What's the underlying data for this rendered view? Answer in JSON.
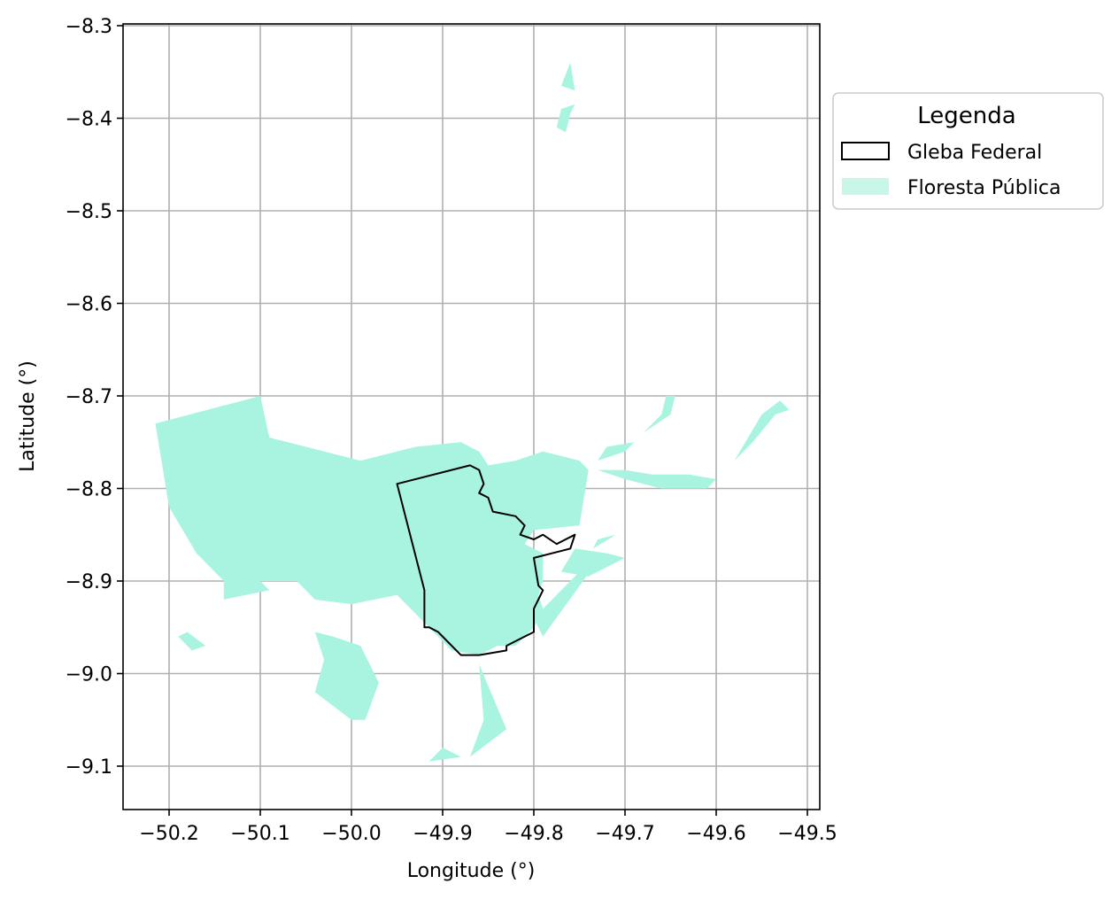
{
  "chart_data": {
    "type": "map",
    "xlabel": "Longitude (°)",
    "ylabel": "Latitude (°)",
    "xlim": [
      -50.25,
      -49.49
    ],
    "ylim": [
      -9.15,
      -8.3
    ],
    "grid": true,
    "x_ticks": [
      "−50.2",
      "−50.1",
      "−50.0",
      "−49.9",
      "−49.8",
      "−49.7",
      "−49.6",
      "−49.5"
    ],
    "y_ticks": [
      "−8.3",
      "−8.4",
      "−8.5",
      "−8.6",
      "−8.7",
      "−8.8",
      "−8.9",
      "−9.0",
      "−9.1"
    ],
    "legend": {
      "title": "Legenda",
      "placement": "outside-right",
      "entries": [
        {
          "label": "Gleba Federal",
          "style": "outline",
          "color": "#000000"
        },
        {
          "label": "Floresta Pública",
          "style": "fill",
          "color": "#a8f4e0"
        }
      ]
    },
    "layers": {
      "gleba_federal": [
        [
          [
            -49.95,
            -8.795
          ],
          [
            -49.87,
            -8.775
          ],
          [
            -49.86,
            -8.78
          ],
          [
            -49.855,
            -8.795
          ],
          [
            -49.86,
            -8.805
          ],
          [
            -49.85,
            -8.81
          ],
          [
            -49.845,
            -8.825
          ],
          [
            -49.82,
            -8.83
          ],
          [
            -49.81,
            -8.84
          ],
          [
            -49.815,
            -8.85
          ],
          [
            -49.8,
            -8.855
          ],
          [
            -49.79,
            -8.85
          ],
          [
            -49.775,
            -8.86
          ],
          [
            -49.755,
            -8.85
          ],
          [
            -49.76,
            -8.865
          ],
          [
            -49.8,
            -8.875
          ],
          [
            -49.795,
            -8.905
          ],
          [
            -49.79,
            -8.91
          ],
          [
            -49.8,
            -8.93
          ],
          [
            -49.8,
            -8.955
          ],
          [
            -49.82,
            -8.965
          ],
          [
            -49.83,
            -8.97
          ],
          [
            -49.83,
            -8.975
          ],
          [
            -49.86,
            -8.98
          ],
          [
            -49.88,
            -8.98
          ],
          [
            -49.905,
            -8.955
          ],
          [
            -49.915,
            -8.95
          ],
          [
            -49.92,
            -8.95
          ],
          [
            -49.92,
            -8.91
          ],
          [
            -49.95,
            -8.795
          ]
        ]
      ],
      "floresta_publica": [
        [
          [
            -50.215,
            -8.73
          ],
          [
            -50.1,
            -8.7
          ],
          [
            -50.09,
            -8.745
          ],
          [
            -49.99,
            -8.77
          ],
          [
            -49.93,
            -8.755
          ],
          [
            -49.88,
            -8.75
          ],
          [
            -49.86,
            -8.76
          ],
          [
            -49.85,
            -8.775
          ],
          [
            -49.82,
            -8.77
          ],
          [
            -49.79,
            -8.76
          ],
          [
            -49.75,
            -8.77
          ],
          [
            -49.74,
            -8.78
          ],
          [
            -49.75,
            -8.84
          ],
          [
            -49.8,
            -8.845
          ],
          [
            -49.81,
            -8.86
          ],
          [
            -49.79,
            -8.87
          ],
          [
            -49.79,
            -8.9
          ],
          [
            -49.795,
            -8.915
          ],
          [
            -49.79,
            -8.93
          ],
          [
            -49.8,
            -8.95
          ],
          [
            -49.82,
            -8.97
          ],
          [
            -49.84,
            -8.97
          ],
          [
            -49.86,
            -8.98
          ],
          [
            -49.89,
            -8.975
          ],
          [
            -49.91,
            -8.955
          ],
          [
            -49.925,
            -8.94
          ],
          [
            -49.95,
            -8.915
          ],
          [
            -50.0,
            -8.925
          ],
          [
            -50.04,
            -8.92
          ],
          [
            -50.06,
            -8.9
          ],
          [
            -50.09,
            -8.9
          ],
          [
            -50.14,
            -8.9
          ],
          [
            -50.17,
            -8.87
          ],
          [
            -50.2,
            -8.82
          ],
          [
            -50.215,
            -8.73
          ]
        ],
        [
          [
            -49.755,
            -8.865
          ],
          [
            -49.72,
            -8.87
          ],
          [
            -49.7,
            -8.875
          ],
          [
            -49.74,
            -8.895
          ],
          [
            -49.77,
            -8.89
          ],
          [
            -49.755,
            -8.865
          ]
        ],
        [
          [
            -49.8,
            -8.94
          ],
          [
            -49.74,
            -8.88
          ],
          [
            -49.735,
            -8.885
          ],
          [
            -49.79,
            -8.96
          ],
          [
            -49.8,
            -8.94
          ]
        ],
        [
          [
            -49.73,
            -8.77
          ],
          [
            -49.7,
            -8.76
          ],
          [
            -49.68,
            -8.74
          ],
          [
            -49.65,
            -8.72
          ],
          [
            -49.645,
            -8.7
          ],
          [
            -49.655,
            -8.7
          ],
          [
            -49.66,
            -8.72
          ],
          [
            -49.69,
            -8.75
          ],
          [
            -49.72,
            -8.755
          ],
          [
            -49.73,
            -8.77
          ]
        ],
        [
          [
            -49.73,
            -8.78
          ],
          [
            -49.7,
            -8.79
          ],
          [
            -49.66,
            -8.8
          ],
          [
            -49.61,
            -8.8
          ],
          [
            -49.6,
            -8.79
          ],
          [
            -49.63,
            -8.785
          ],
          [
            -49.67,
            -8.785
          ],
          [
            -49.7,
            -8.78
          ],
          [
            -49.73,
            -8.78
          ]
        ],
        [
          [
            -49.56,
            -8.75
          ],
          [
            -49.535,
            -8.72
          ],
          [
            -49.52,
            -8.715
          ],
          [
            -49.53,
            -8.705
          ],
          [
            -49.55,
            -8.72
          ],
          [
            -49.58,
            -8.77
          ],
          [
            -49.56,
            -8.75
          ]
        ],
        [
          [
            -49.735,
            -8.865
          ],
          [
            -49.71,
            -8.85
          ],
          [
            -49.69,
            -8.845
          ],
          [
            -49.73,
            -8.855
          ],
          [
            -49.735,
            -8.865
          ]
        ],
        [
          [
            -49.76,
            -8.34
          ],
          [
            -49.755,
            -8.37
          ],
          [
            -49.77,
            -8.365
          ],
          [
            -49.76,
            -8.34
          ]
        ],
        [
          [
            -49.755,
            -8.385
          ],
          [
            -49.77,
            -8.39
          ],
          [
            -49.775,
            -8.41
          ],
          [
            -49.765,
            -8.415
          ],
          [
            -49.76,
            -8.395
          ],
          [
            -49.755,
            -8.385
          ]
        ],
        [
          [
            -50.19,
            -8.96
          ],
          [
            -50.18,
            -8.955
          ],
          [
            -50.16,
            -8.97
          ],
          [
            -50.175,
            -8.975
          ],
          [
            -50.19,
            -8.96
          ]
        ],
        [
          [
            -50.14,
            -8.9
          ],
          [
            -50.12,
            -8.895
          ],
          [
            -50.1,
            -8.9
          ],
          [
            -50.09,
            -8.91
          ],
          [
            -50.14,
            -8.92
          ],
          [
            -50.14,
            -8.9
          ]
        ],
        [
          [
            -50.06,
            -8.95
          ],
          [
            -50.04,
            -8.955
          ],
          [
            -50.03,
            -8.985
          ],
          [
            -50.04,
            -9.02
          ],
          [
            -50.0,
            -9.05
          ],
          [
            -49.985,
            -9.05
          ],
          [
            -49.97,
            -9.01
          ],
          [
            -49.99,
            -8.97
          ],
          [
            -50.02,
            -8.96
          ],
          [
            -50.06,
            -8.95
          ]
        ],
        [
          [
            -49.86,
            -8.99
          ],
          [
            -49.855,
            -9.05
          ],
          [
            -49.87,
            -9.09
          ],
          [
            -49.83,
            -9.06
          ],
          [
            -49.86,
            -8.99
          ]
        ],
        [
          [
            -49.9,
            -9.08
          ],
          [
            -49.88,
            -9.09
          ],
          [
            -49.915,
            -9.095
          ],
          [
            -49.9,
            -9.08
          ]
        ]
      ]
    }
  }
}
